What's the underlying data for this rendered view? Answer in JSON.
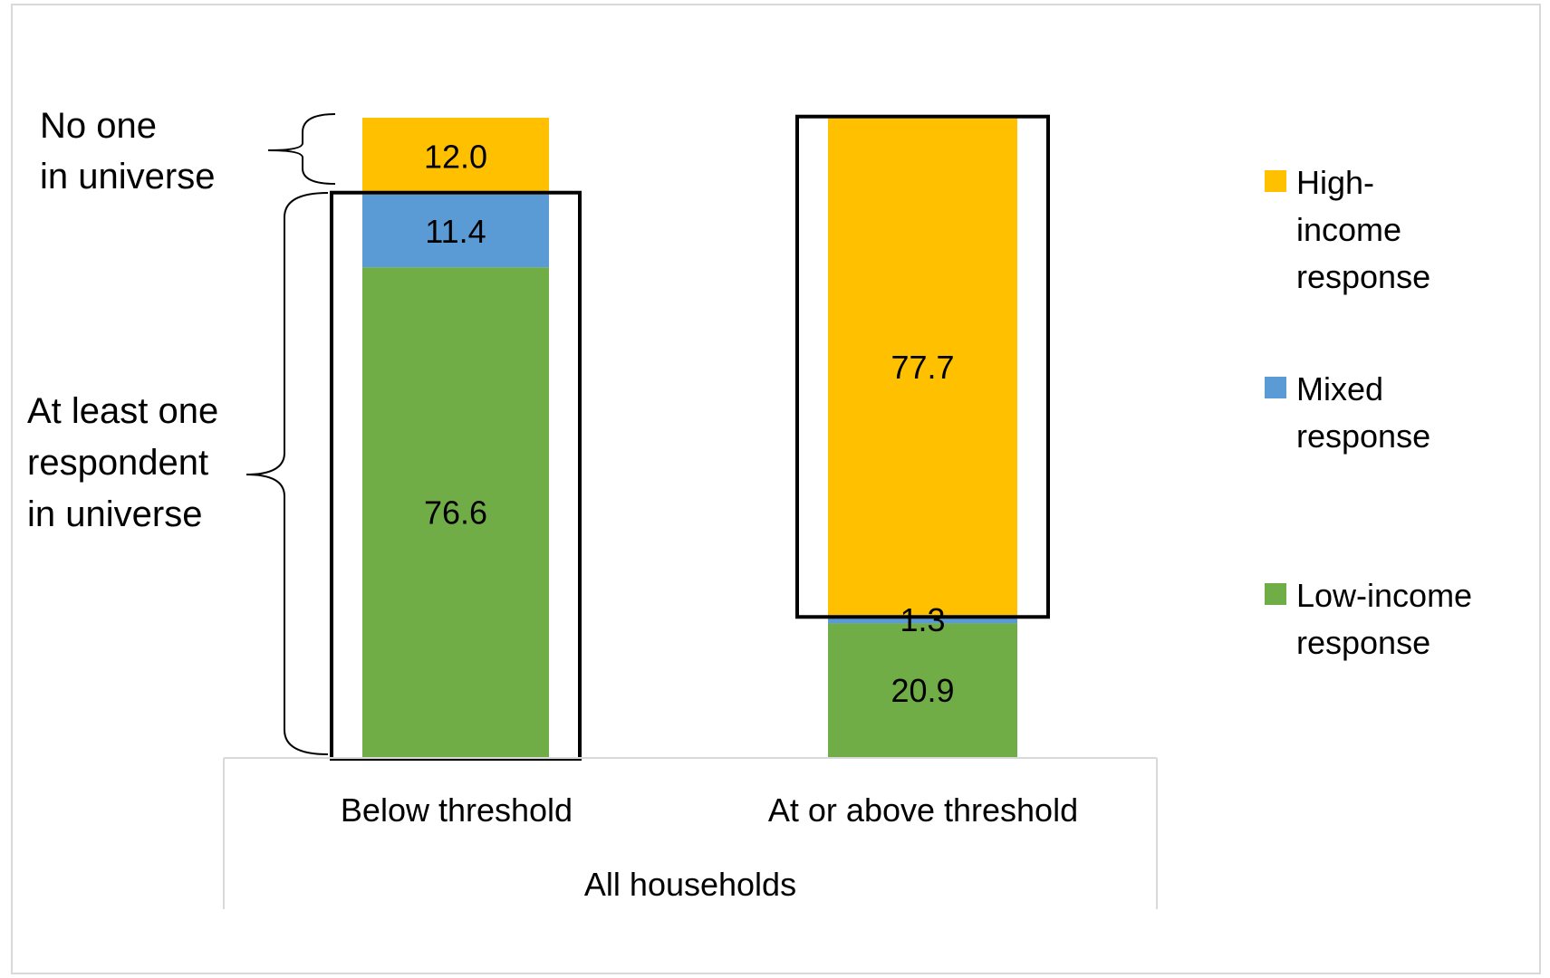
{
  "chart_data": {
    "type": "bar",
    "stacked": true,
    "title": "",
    "xlabel": "All households",
    "ylabel": "",
    "categories": [
      "Below threshold",
      "At or above threshold"
    ],
    "series": [
      {
        "name": "Low-income response",
        "color": "#70AD47",
        "values": [
          76.6,
          20.9
        ],
        "labels": [
          "76.6",
          "20.9"
        ]
      },
      {
        "name": "Mixed response",
        "color": "#5B9BD5",
        "values": [
          11.4,
          1.3
        ],
        "labels": [
          "11.4",
          "1.3"
        ]
      },
      {
        "name": "High-income response",
        "color": "#FFC000",
        "values": [
          12.0,
          77.7
        ],
        "labels": [
          "12.0",
          "77.7"
        ]
      }
    ],
    "legend": {
      "position": "right",
      "entries": [
        {
          "series": 2,
          "lines": [
            "High-",
            "income",
            "response"
          ]
        },
        {
          "series": 1,
          "lines": [
            "Mixed",
            "response"
          ]
        },
        {
          "series": 0,
          "lines": [
            "Low-income",
            "response"
          ]
        }
      ]
    },
    "annotations": {
      "no_one": [
        "No one",
        "in universe"
      ],
      "at_least_one": [
        "At least one",
        "respondent",
        "in universe"
      ]
    },
    "highlight_boxes": [
      {
        "category": 0,
        "series": [
          0,
          1
        ]
      },
      {
        "category": 1,
        "series": [
          2
        ]
      }
    ],
    "ylim": [
      0,
      100
    ],
    "grid": false
  }
}
